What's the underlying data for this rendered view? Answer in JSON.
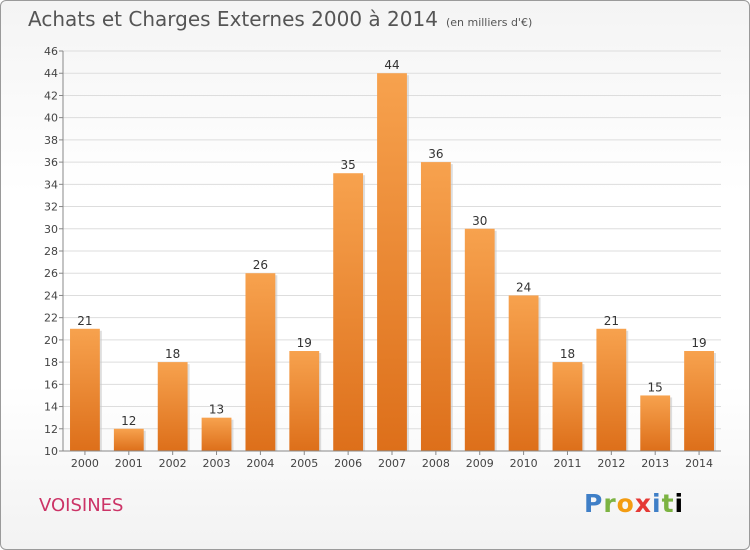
{
  "title": "Achats et Charges Externes 2000 à 2014",
  "unit": "(en milliers d'€)",
  "commune": "VOISINES",
  "logo": [
    "P",
    "r",
    "o",
    "x",
    "i",
    "t",
    "i"
  ],
  "chart_data": {
    "type": "bar",
    "title": "Achats et Charges Externes 2000 à 2014",
    "subtitle": "(en milliers d'€)",
    "categories": [
      "2000",
      "2001",
      "2002",
      "2003",
      "2004",
      "2005",
      "2006",
      "2007",
      "2008",
      "2009",
      "2010",
      "2011",
      "2012",
      "2013",
      "2014"
    ],
    "values": [
      21,
      12,
      18,
      13,
      26,
      19,
      35,
      44,
      36,
      30,
      24,
      18,
      21,
      15,
      19
    ],
    "ylim": [
      10,
      46
    ],
    "yticks": [
      10,
      12,
      14,
      16,
      18,
      20,
      22,
      24,
      26,
      28,
      30,
      32,
      34,
      36,
      38,
      40,
      42,
      44,
      46
    ],
    "grid": true,
    "bar_color": "#f0892f"
  }
}
